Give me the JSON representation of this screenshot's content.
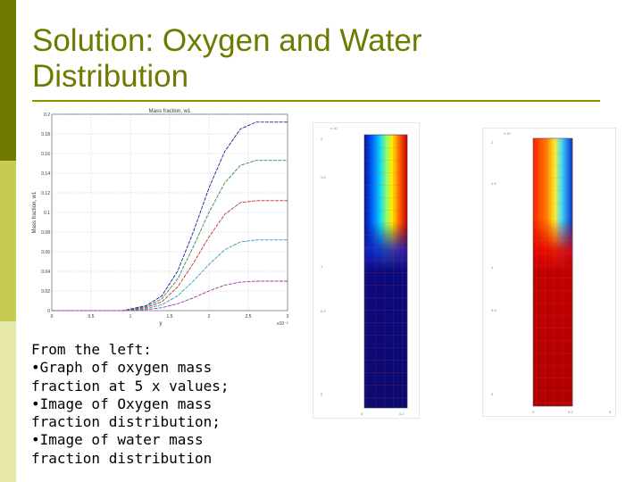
{
  "slide": {
    "title_line1": "Solution: Oxygen and Water",
    "title_line2": "Distribution",
    "caption": [
      "From the left:",
      "•Graph of oxygen mass",
      "fraction at 5 x values;",
      "•Image of Oxygen mass",
      "fraction distribution;",
      "•Image of water mass",
      "fraction distribution"
    ]
  },
  "colors": {
    "accent": "#6f7a00",
    "bar_mid": "#c6cc52",
    "bar_light": "#e6e8a8"
  },
  "chart_data": {
    "type": "line",
    "title": "Mass fraction, w1",
    "ylabel": "Mass fraction, w1",
    "xlabel": "y",
    "x_multiplier": "x10⁻³",
    "xlim": [
      0,
      3
    ],
    "ylim": [
      0,
      0.2
    ],
    "x_ticks": [
      "0",
      "0.5",
      "1",
      "1.5",
      "2",
      "2.5",
      "3"
    ],
    "y_ticks": [
      "0",
      "0.02",
      "0.04",
      "0.06",
      "0.08",
      "0.1",
      "0.12",
      "0.14",
      "0.16",
      "0.18",
      "0.2"
    ],
    "series": [
      {
        "color": "#1a1aa0",
        "x": [
          0,
          0.9,
          1.2,
          1.4,
          1.6,
          1.8,
          2.0,
          2.2,
          2.4,
          2.6,
          2.8,
          3.0
        ],
        "values": [
          0,
          0,
          0.005,
          0.015,
          0.04,
          0.08,
          0.125,
          0.162,
          0.185,
          0.192,
          0.192,
          0.192
        ]
      },
      {
        "color": "#2e8b57",
        "x": [
          0,
          0.9,
          1.2,
          1.4,
          1.6,
          1.8,
          2.0,
          2.2,
          2.4,
          2.6,
          2.8,
          3.0
        ],
        "values": [
          0,
          0,
          0.004,
          0.012,
          0.032,
          0.065,
          0.1,
          0.13,
          0.148,
          0.153,
          0.153,
          0.153
        ]
      },
      {
        "color": "#c03030",
        "x": [
          0,
          0.9,
          1.2,
          1.4,
          1.6,
          1.8,
          2.0,
          2.2,
          2.4,
          2.6,
          2.8,
          3.0
        ],
        "values": [
          0,
          0,
          0.003,
          0.009,
          0.024,
          0.048,
          0.075,
          0.098,
          0.11,
          0.112,
          0.112,
          0.112
        ]
      },
      {
        "color": "#1fa5b5",
        "x": [
          0,
          0.9,
          1.2,
          1.4,
          1.6,
          1.8,
          2.0,
          2.2,
          2.4,
          2.6,
          2.8,
          3.0
        ],
        "values": [
          0,
          0,
          0.002,
          0.006,
          0.015,
          0.03,
          0.047,
          0.062,
          0.07,
          0.072,
          0.072,
          0.072
        ]
      },
      {
        "color": "#9a3a9a",
        "x": [
          0,
          0.9,
          1.2,
          1.4,
          1.6,
          1.8,
          2.0,
          2.2,
          2.4,
          2.6,
          2.8,
          3.0
        ],
        "values": [
          0,
          0,
          0.001,
          0.003,
          0.007,
          0.013,
          0.02,
          0.026,
          0.029,
          0.03,
          0.03,
          0.03
        ]
      }
    ]
  }
}
